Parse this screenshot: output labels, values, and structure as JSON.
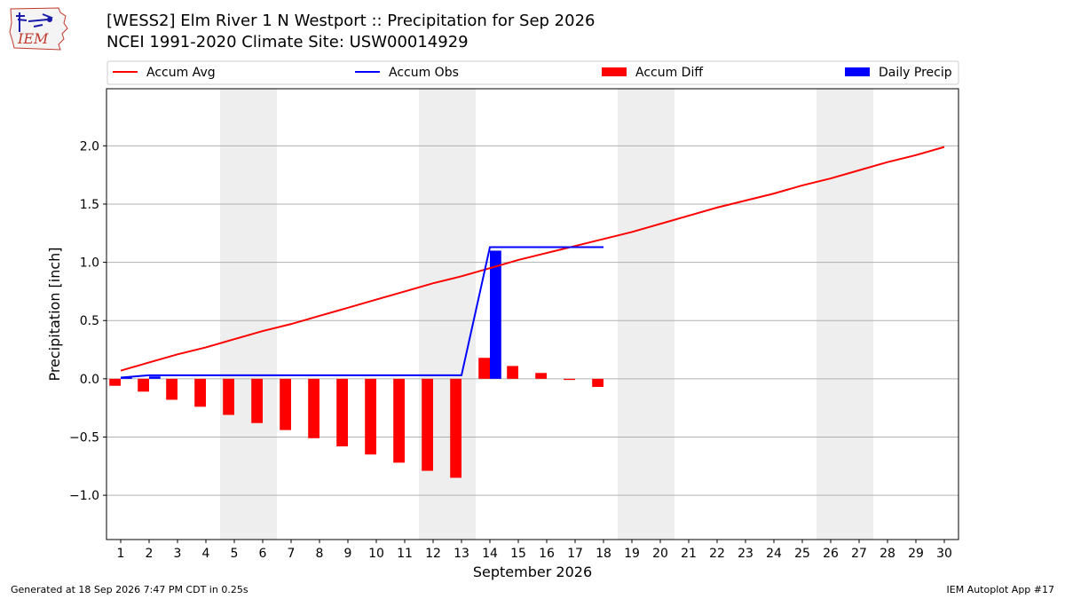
{
  "header": {
    "title_line1": "[WESS2] Elm River 1 N Westport :: Precipitation for Sep 2026",
    "title_line2": "NCEI 1991-2020 Climate Site: USW00014929",
    "logo_text": "IEM"
  },
  "footer": {
    "left": "Generated at 18 Sep 2026 7:47 PM CDT in 0.25s",
    "right": "IEM Autoplot App #17"
  },
  "chart_data": {
    "type": "bar",
    "xlabel": "September 2026",
    "ylabel": "Precipitation [inch]",
    "ylim": [
      -1.38,
      2.49
    ],
    "xlim": [
      0.5,
      30.5
    ],
    "yticks": [
      -1.0,
      -0.5,
      0.0,
      0.5,
      1.0,
      1.5,
      2.0
    ],
    "ytick_labels": [
      "−1.0",
      "−0.5",
      "0.0",
      "0.5",
      "1.0",
      "1.5",
      "2.0"
    ],
    "days": [
      1,
      2,
      3,
      4,
      5,
      6,
      7,
      8,
      9,
      10,
      11,
      12,
      13,
      14,
      15,
      16,
      17,
      18,
      19,
      20,
      21,
      22,
      23,
      24,
      25,
      26,
      27,
      28,
      29,
      30
    ],
    "weekend_bands": [
      [
        4.5,
        6.5
      ],
      [
        11.5,
        13.5
      ],
      [
        18.5,
        20.5
      ],
      [
        25.5,
        27.5
      ]
    ],
    "grid": "y",
    "legend_position": "top",
    "series": [
      {
        "name": "Accum Avg",
        "kind": "line",
        "color": "#ff0000",
        "x": [
          1,
          2,
          3,
          4,
          5,
          6,
          7,
          8,
          9,
          10,
          11,
          12,
          13,
          14,
          15,
          16,
          17,
          18,
          19,
          20,
          21,
          22,
          23,
          24,
          25,
          26,
          27,
          28,
          29,
          30
        ],
        "values": [
          0.07,
          0.14,
          0.21,
          0.27,
          0.34,
          0.41,
          0.47,
          0.54,
          0.61,
          0.68,
          0.75,
          0.82,
          0.88,
          0.95,
          1.02,
          1.08,
          1.14,
          1.2,
          1.26,
          1.33,
          1.4,
          1.47,
          1.53,
          1.59,
          1.66,
          1.72,
          1.79,
          1.86,
          1.92,
          1.99
        ]
      },
      {
        "name": "Accum Obs",
        "kind": "line",
        "color": "#0000ff",
        "x": [
          1,
          2,
          3,
          4,
          5,
          6,
          7,
          8,
          9,
          10,
          11,
          12,
          13,
          14,
          15,
          16,
          17,
          18
        ],
        "values": [
          0.01,
          0.03,
          0.03,
          0.03,
          0.03,
          0.03,
          0.03,
          0.03,
          0.03,
          0.03,
          0.03,
          0.03,
          0.03,
          1.13,
          1.13,
          1.13,
          1.13,
          1.13
        ]
      },
      {
        "name": "Accum Diff",
        "kind": "bar",
        "color": "#ff0000",
        "offset": -0.2,
        "x": [
          1,
          2,
          3,
          4,
          5,
          6,
          7,
          8,
          9,
          10,
          11,
          12,
          13,
          14,
          15,
          16,
          17,
          18
        ],
        "values": [
          -0.06,
          -0.11,
          -0.18,
          -0.24,
          -0.31,
          -0.38,
          -0.44,
          -0.51,
          -0.58,
          -0.65,
          -0.72,
          -0.79,
          -0.85,
          0.18,
          0.11,
          0.05,
          -0.01,
          -0.07
        ]
      },
      {
        "name": "Daily Precip",
        "kind": "bar",
        "color": "#0000ff",
        "offset": 0.2,
        "x": [
          1,
          2,
          3,
          4,
          5,
          6,
          7,
          8,
          9,
          10,
          11,
          12,
          13,
          14,
          15,
          16,
          17,
          18
        ],
        "values": [
          0.01,
          0.02,
          0,
          0,
          0,
          0,
          0,
          0,
          0,
          0,
          0,
          0,
          0,
          1.1,
          0,
          0,
          0,
          0
        ]
      }
    ]
  }
}
